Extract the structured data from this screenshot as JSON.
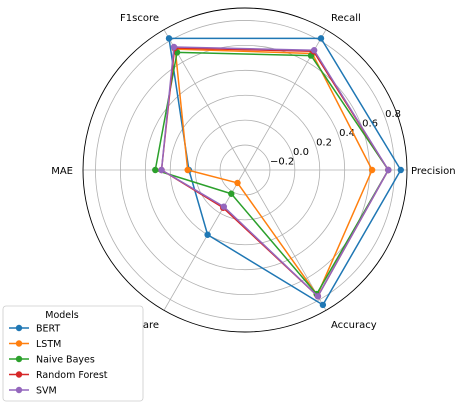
{
  "chart_data": {
    "type": "radar",
    "axes": [
      "Precision",
      "Recall",
      "F1score",
      "MAE",
      "R square",
      "Accuracy"
    ],
    "rlim": [
      -0.4,
      0.9
    ],
    "rticks": [
      -0.2,
      0.0,
      0.2,
      0.4,
      0.6,
      0.8
    ],
    "rtick_labels": [
      "−0.2",
      "0.0",
      "0.2",
      "0.4",
      "0.6",
      "0.8"
    ],
    "grid": true,
    "legend": {
      "title": "Models",
      "placement": "lower-left"
    },
    "series": [
      {
        "name": "BERT",
        "color": "#1f77b4",
        "values": [
          0.85,
          0.82,
          0.82,
          0.05,
          0.2,
          0.85
        ]
      },
      {
        "name": "LSTM",
        "color": "#ff7f0e",
        "values": [
          0.62,
          0.68,
          0.72,
          0.06,
          -0.28,
          0.76
        ]
      },
      {
        "name": "Naive Bayes",
        "color": "#2ca02c",
        "values": [
          0.75,
          0.66,
          0.69,
          0.32,
          -0.18,
          0.75
        ]
      },
      {
        "name": "Random Forest",
        "color": "#d62728",
        "values": [
          0.75,
          0.7,
          0.73,
          0.27,
          -0.05,
          0.77
        ]
      },
      {
        "name": "SVM",
        "color": "#9467bd",
        "values": [
          0.75,
          0.71,
          0.74,
          0.27,
          -0.06,
          0.77
        ]
      }
    ]
  }
}
